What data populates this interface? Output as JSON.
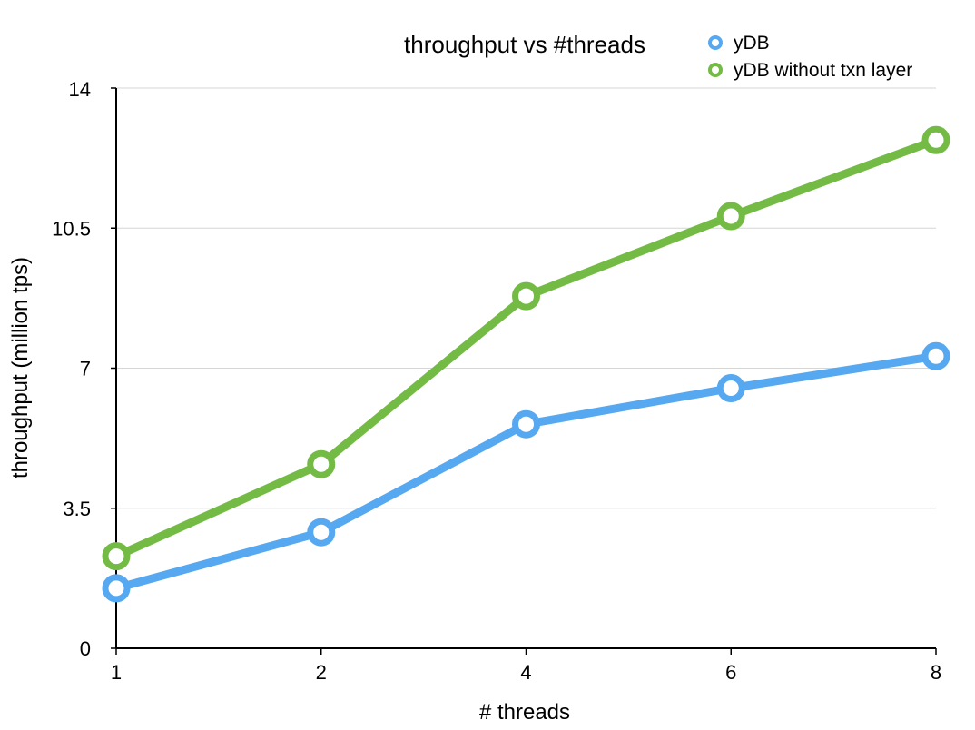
{
  "chart_data": {
    "type": "line",
    "title": "throughput vs #threads",
    "xlabel": "# threads",
    "ylabel": "throughput (million tps)",
    "categories": [
      "1",
      "2",
      "4",
      "6",
      "8"
    ],
    "yticks": [
      "0",
      "3.5",
      "7",
      "10.5",
      "14"
    ],
    "ylim": [
      0,
      14
    ],
    "grid": true,
    "legend_position": "top-right",
    "series": [
      {
        "name": "yDB",
        "color": "#56a8f0",
        "values": [
          1.5,
          2.9,
          5.6,
          6.5,
          7.3
        ]
      },
      {
        "name": "yDB without txn layer",
        "color": "#74bb45",
        "values": [
          2.3,
          4.6,
          8.8,
          10.8,
          12.7
        ]
      }
    ]
  }
}
